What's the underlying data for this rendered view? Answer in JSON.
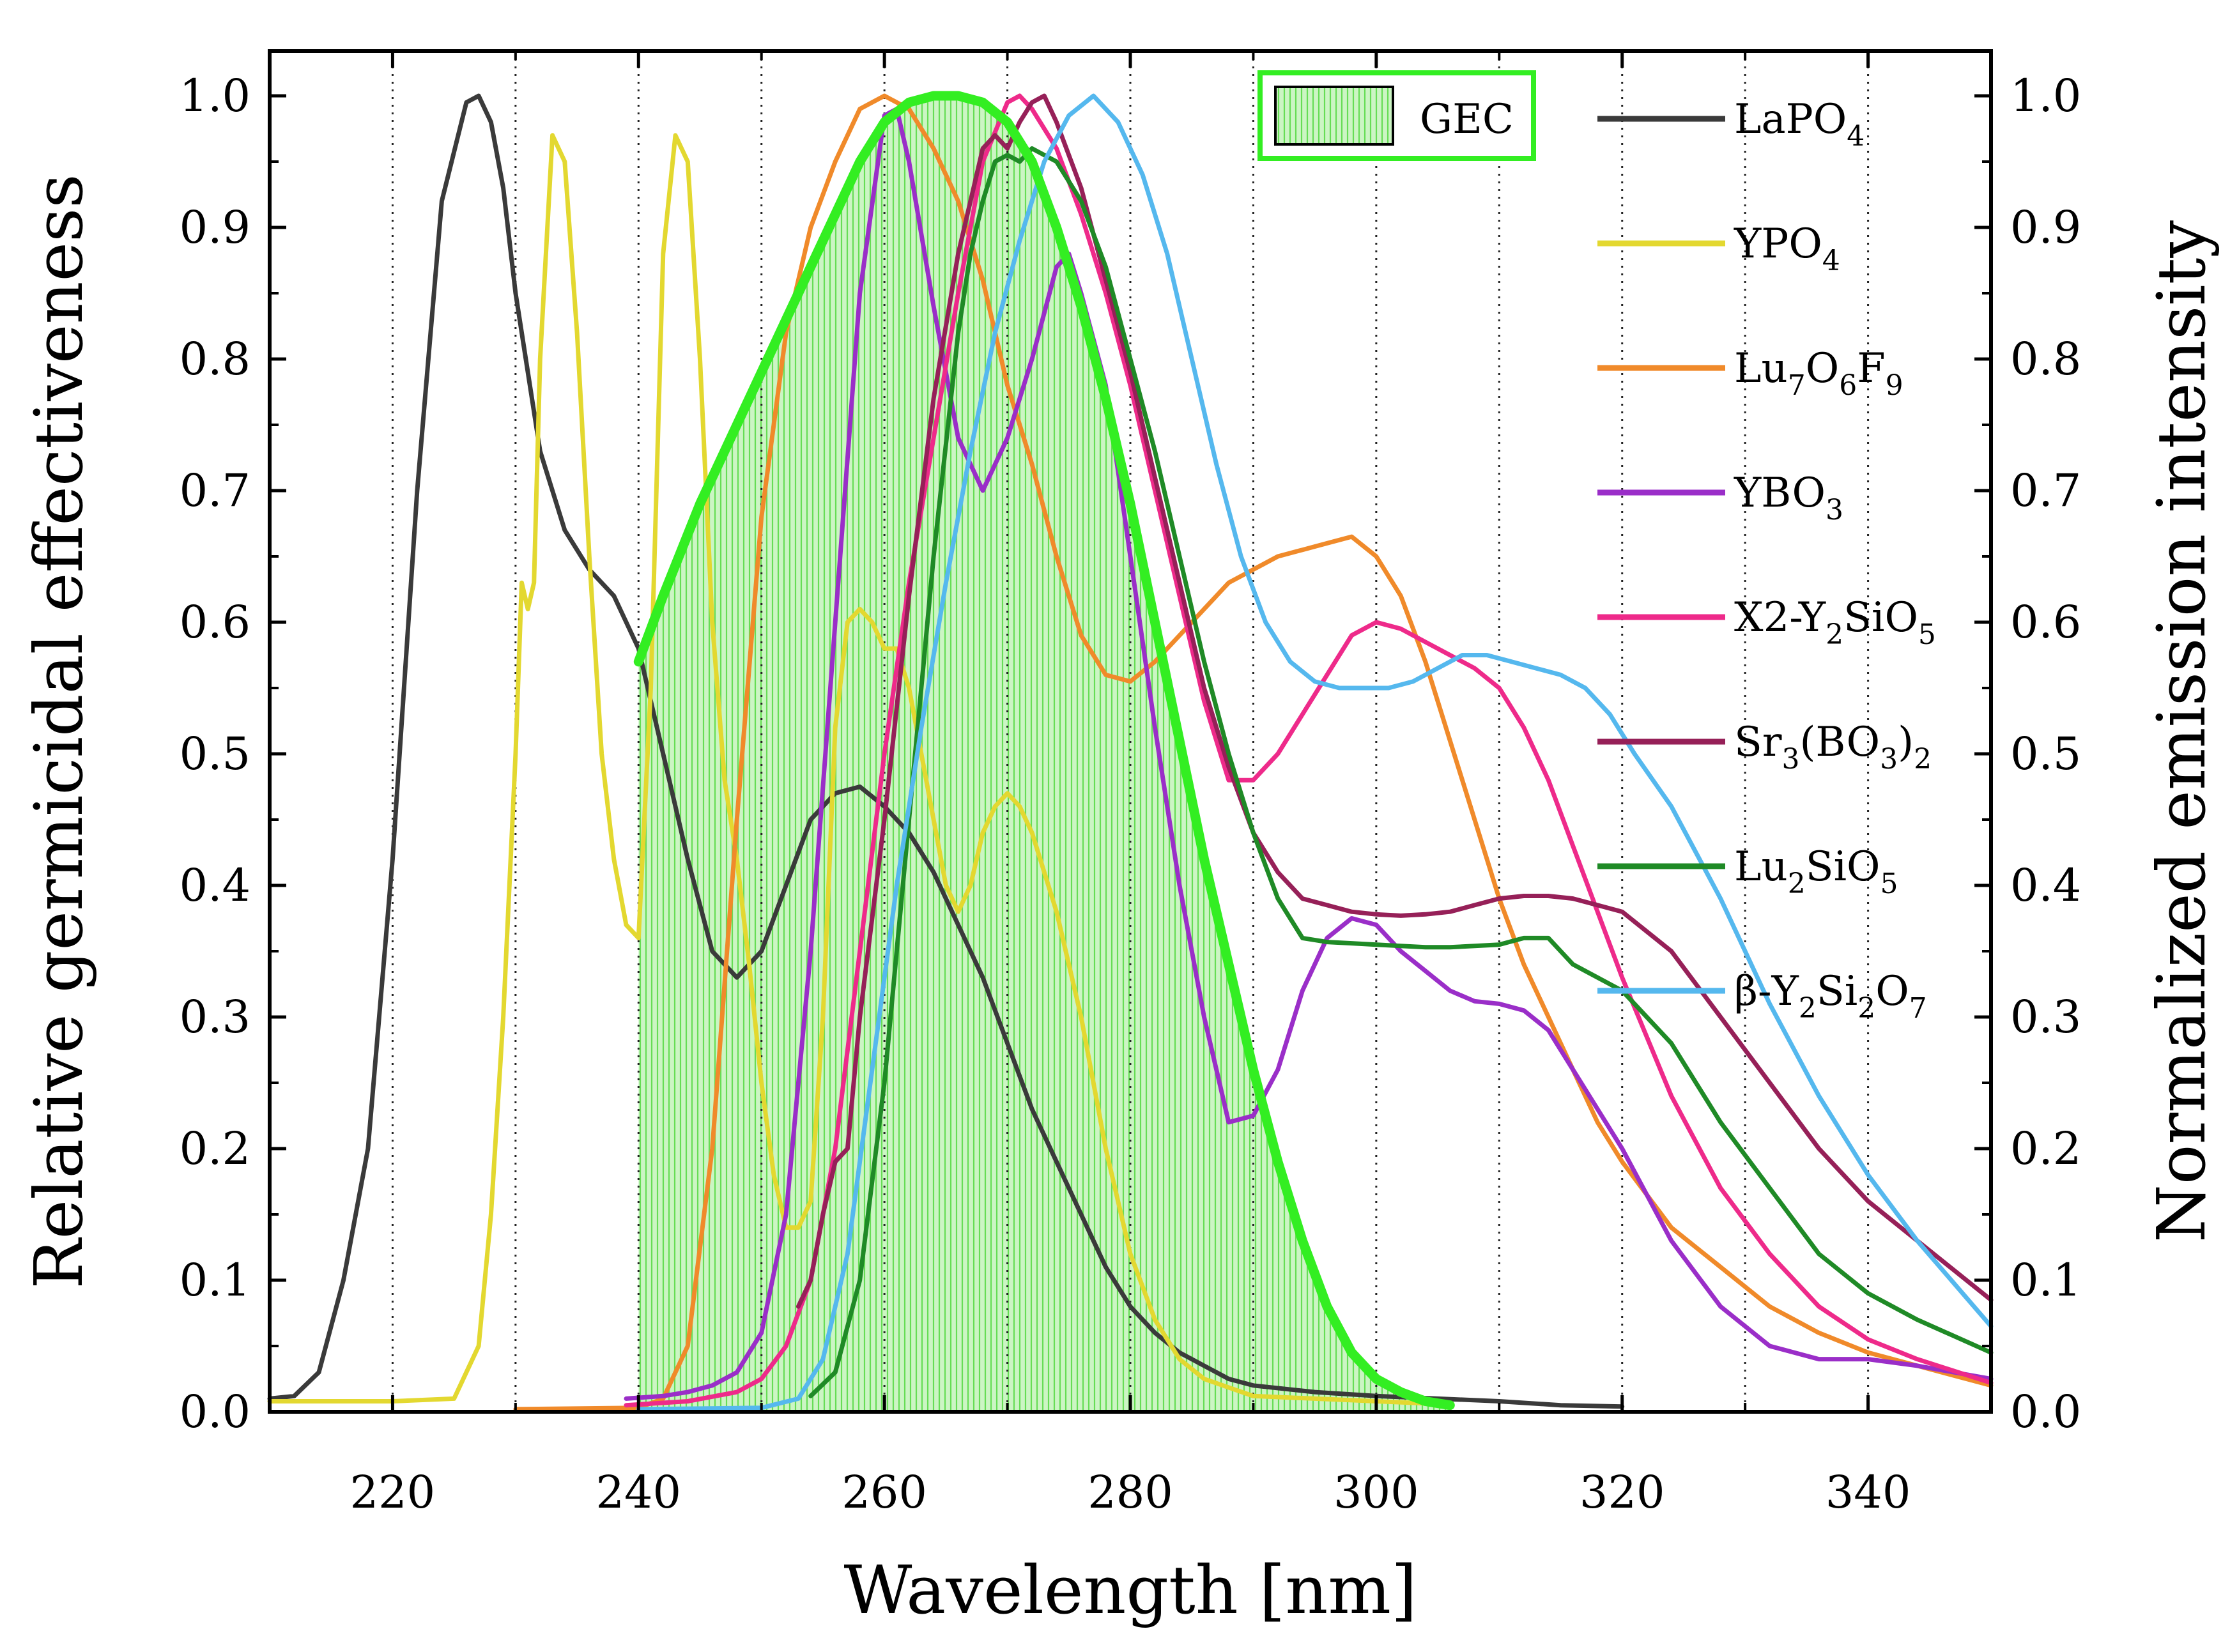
{
  "chart_data": {
    "type": "line",
    "title": "",
    "xlabel": "Wavelength [nm]",
    "ylabel": "Relative germicidal effectiveness",
    "y2label": "Normalized emission intensity",
    "xlim": [
      210,
      350
    ],
    "ylim": [
      0,
      1.0
    ],
    "y2lim": [
      0,
      1.0
    ],
    "x_ticks": [
      220,
      240,
      260,
      280,
      300,
      320,
      340
    ],
    "x_tick_labels": [
      "220",
      "240",
      "260",
      "280",
      "300",
      "320",
      "340"
    ],
    "x_grid_lines": [
      220,
      230,
      240,
      250,
      260,
      270,
      280,
      290,
      300,
      310,
      320,
      330,
      340
    ],
    "y_ticks": [
      0.0,
      0.1,
      0.2,
      0.3,
      0.4,
      0.5,
      0.6,
      0.7,
      0.8,
      0.9,
      1.0
    ],
    "y_tick_labels": [
      "0.0",
      "0.1",
      "0.2",
      "0.3",
      "0.4",
      "0.5",
      "0.6",
      "0.7",
      "0.8",
      "0.9",
      "1.0"
    ],
    "y2_tick_labels": [
      "0.0",
      "0.1",
      "0.2",
      "0.3",
      "0.4",
      "0.5",
      "0.6",
      "0.7",
      "0.8",
      "0.9",
      "1.0"
    ],
    "grid": "vertical dotted",
    "legend_placement": "top-right",
    "gec": {
      "name": "GEC",
      "color": "#33ee22",
      "fill_color": "#ccf5c4",
      "x": [
        240,
        242,
        245,
        248,
        250,
        252,
        254,
        256,
        258,
        260,
        262,
        264,
        265,
        266,
        268,
        270,
        272,
        274,
        276,
        278,
        280,
        282,
        284,
        286,
        288,
        290,
        292,
        294,
        296,
        298,
        300,
        302,
        304,
        306
      ],
      "y": [
        0.57,
        0.62,
        0.69,
        0.75,
        0.79,
        0.83,
        0.87,
        0.91,
        0.95,
        0.98,
        0.995,
        1.0,
        1.0,
        1.0,
        0.995,
        0.98,
        0.95,
        0.9,
        0.84,
        0.77,
        0.69,
        0.6,
        0.51,
        0.42,
        0.34,
        0.26,
        0.19,
        0.13,
        0.08,
        0.045,
        0.025,
        0.015,
        0.008,
        0.005
      ]
    },
    "series": [
      {
        "name": "LaPO",
        "sub": "4",
        "sub_rest": "",
        "color": "#3a3a3a",
        "x": [
          210,
          212,
          214,
          216,
          218,
          220,
          222,
          224,
          226,
          227,
          228,
          229,
          230,
          232,
          234,
          236,
          238,
          240,
          242,
          244,
          246,
          248,
          250,
          252,
          254,
          256,
          258,
          260,
          262,
          264,
          266,
          268,
          270,
          272,
          274,
          276,
          278,
          280,
          282,
          284,
          286,
          288,
          290,
          295,
          300,
          305,
          310,
          315,
          320
        ],
        "y": [
          0.01,
          0.012,
          0.03,
          0.1,
          0.2,
          0.42,
          0.7,
          0.92,
          0.995,
          1.0,
          0.98,
          0.93,
          0.85,
          0.73,
          0.67,
          0.64,
          0.62,
          0.58,
          0.5,
          0.42,
          0.35,
          0.33,
          0.35,
          0.4,
          0.45,
          0.47,
          0.475,
          0.46,
          0.44,
          0.41,
          0.37,
          0.33,
          0.28,
          0.23,
          0.19,
          0.15,
          0.11,
          0.08,
          0.06,
          0.045,
          0.035,
          0.025,
          0.02,
          0.015,
          0.012,
          0.01,
          0.008,
          0.005,
          0.004
        ]
      },
      {
        "name": "YPO",
        "sub": "4",
        "sub_rest": "",
        "color": "#e3d830",
        "x": [
          210,
          220,
          225,
          227,
          228,
          229,
          230,
          230.5,
          231,
          231.5,
          232,
          233,
          234,
          235,
          236,
          237,
          238,
          239,
          240,
          241,
          242,
          243,
          244,
          245,
          246,
          247,
          248,
          249,
          250,
          251,
          252,
          253,
          254,
          255,
          256,
          257,
          258,
          259,
          260,
          261,
          262,
          263,
          264,
          265,
          266,
          267,
          268,
          269,
          270,
          271,
          272,
          274,
          276,
          278,
          280,
          282,
          284,
          286,
          290,
          300,
          305
        ],
        "y": [
          0.008,
          0.008,
          0.01,
          0.05,
          0.15,
          0.3,
          0.5,
          0.63,
          0.61,
          0.63,
          0.8,
          0.97,
          0.95,
          0.82,
          0.65,
          0.5,
          0.42,
          0.37,
          0.36,
          0.55,
          0.88,
          0.97,
          0.95,
          0.8,
          0.6,
          0.48,
          0.42,
          0.34,
          0.25,
          0.18,
          0.14,
          0.14,
          0.16,
          0.3,
          0.52,
          0.6,
          0.61,
          0.6,
          0.58,
          0.58,
          0.55,
          0.5,
          0.45,
          0.4,
          0.38,
          0.4,
          0.44,
          0.46,
          0.47,
          0.46,
          0.44,
          0.38,
          0.3,
          0.2,
          0.12,
          0.07,
          0.04,
          0.025,
          0.012,
          0.008,
          0.006
        ]
      },
      {
        "name": "Lu",
        "sub": "7",
        "sub_rest": "O|6|F|9",
        "color": "#f08a2a",
        "x": [
          230,
          240,
          242,
          244,
          246,
          248,
          250,
          252,
          254,
          256,
          258,
          260,
          262,
          264,
          266,
          268,
          270,
          272,
          274,
          276,
          278,
          280,
          282,
          284,
          286,
          288,
          290,
          292,
          294,
          296,
          298,
          300,
          302,
          304,
          306,
          308,
          310,
          312,
          314,
          316,
          318,
          320,
          324,
          328,
          332,
          336,
          340,
          344,
          350
        ],
        "y": [
          0.002,
          0.003,
          0.01,
          0.05,
          0.2,
          0.45,
          0.68,
          0.82,
          0.9,
          0.95,
          0.99,
          1.0,
          0.99,
          0.96,
          0.92,
          0.86,
          0.78,
          0.72,
          0.65,
          0.59,
          0.56,
          0.555,
          0.57,
          0.59,
          0.61,
          0.63,
          0.64,
          0.65,
          0.655,
          0.66,
          0.665,
          0.65,
          0.62,
          0.57,
          0.51,
          0.45,
          0.39,
          0.34,
          0.3,
          0.26,
          0.22,
          0.19,
          0.14,
          0.11,
          0.08,
          0.06,
          0.045,
          0.035,
          0.02
        ]
      },
      {
        "name": "YBO",
        "sub": "3",
        "sub_rest": "",
        "color": "#9a2ec8",
        "x": [
          239,
          242,
          244,
          246,
          248,
          250,
          252,
          254,
          256,
          258,
          260,
          261,
          262,
          264,
          266,
          268,
          270,
          272,
          274,
          275,
          276,
          278,
          280,
          282,
          284,
          286,
          288,
          290,
          292,
          294,
          296,
          298,
          300,
          302,
          304,
          306,
          308,
          310,
          312,
          314,
          316,
          318,
          320,
          324,
          328,
          332,
          336,
          340,
          344,
          350
        ],
        "y": [
          0.01,
          0.012,
          0.015,
          0.02,
          0.03,
          0.06,
          0.15,
          0.35,
          0.6,
          0.85,
          0.985,
          0.99,
          0.95,
          0.84,
          0.74,
          0.7,
          0.74,
          0.8,
          0.87,
          0.88,
          0.85,
          0.78,
          0.65,
          0.52,
          0.4,
          0.3,
          0.22,
          0.225,
          0.26,
          0.32,
          0.36,
          0.375,
          0.37,
          0.35,
          0.335,
          0.32,
          0.312,
          0.31,
          0.305,
          0.29,
          0.26,
          0.23,
          0.2,
          0.13,
          0.08,
          0.05,
          0.04,
          0.04,
          0.035,
          0.025
        ]
      },
      {
        "name": "X2-Y",
        "sub": "2",
        "sub_rest": "SiO|5",
        "color": "#ee2a8a",
        "x": [
          239,
          244,
          248,
          250,
          252,
          254,
          256,
          258,
          260,
          262,
          264,
          266,
          268,
          270,
          271,
          272,
          274,
          276,
          278,
          280,
          282,
          284,
          286,
          288,
          290,
          292,
          294,
          296,
          298,
          300,
          302,
          304,
          306,
          308,
          310,
          312,
          314,
          316,
          318,
          320,
          324,
          328,
          332,
          336,
          340,
          344,
          350
        ],
        "y": [
          0.005,
          0.008,
          0.015,
          0.025,
          0.05,
          0.1,
          0.2,
          0.35,
          0.5,
          0.63,
          0.74,
          0.85,
          0.95,
          0.995,
          1.0,
          0.99,
          0.96,
          0.91,
          0.85,
          0.78,
          0.7,
          0.62,
          0.54,
          0.48,
          0.48,
          0.5,
          0.53,
          0.56,
          0.59,
          0.6,
          0.595,
          0.585,
          0.575,
          0.565,
          0.55,
          0.52,
          0.48,
          0.43,
          0.38,
          0.33,
          0.24,
          0.17,
          0.12,
          0.08,
          0.055,
          0.04,
          0.022
        ]
      },
      {
        "name": "Sr",
        "sub": "3",
        "sub_rest": "(BO|3|)|2",
        "color": "#962058",
        "x": [
          253,
          254,
          255,
          256,
          257,
          258,
          260,
          262,
          264,
          266,
          268,
          269,
          270,
          271,
          272,
          273,
          274,
          276,
          278,
          280,
          282,
          284,
          286,
          288,
          290,
          292,
          294,
          296,
          298,
          300,
          302,
          304,
          306,
          308,
          310,
          312,
          314,
          316,
          318,
          320,
          324,
          328,
          332,
          336,
          340,
          344,
          350
        ],
        "y": [
          0.08,
          0.1,
          0.15,
          0.19,
          0.2,
          0.3,
          0.45,
          0.62,
          0.77,
          0.88,
          0.96,
          0.97,
          0.96,
          0.98,
          0.995,
          1.0,
          0.98,
          0.93,
          0.86,
          0.79,
          0.71,
          0.63,
          0.55,
          0.49,
          0.44,
          0.41,
          0.39,
          0.385,
          0.38,
          0.378,
          0.377,
          0.378,
          0.38,
          0.385,
          0.39,
          0.392,
          0.392,
          0.39,
          0.385,
          0.38,
          0.35,
          0.3,
          0.25,
          0.2,
          0.16,
          0.13,
          0.085
        ]
      },
      {
        "name": "Lu",
        "sub": "2",
        "sub_rest": "SiO|5",
        "color": "#1f8a26",
        "x": [
          254,
          256,
          258,
          260,
          262,
          264,
          266,
          267,
          268,
          269,
          270,
          271,
          272,
          274,
          276,
          278,
          280,
          282,
          284,
          286,
          288,
          290,
          292,
          294,
          296,
          298,
          300,
          302,
          304,
          306,
          308,
          310,
          312,
          314,
          316,
          318,
          320,
          324,
          328,
          332,
          336,
          340,
          344,
          350
        ],
        "y": [
          0.012,
          0.03,
          0.1,
          0.25,
          0.45,
          0.65,
          0.82,
          0.88,
          0.92,
          0.95,
          0.955,
          0.95,
          0.96,
          0.95,
          0.92,
          0.87,
          0.8,
          0.73,
          0.65,
          0.57,
          0.5,
          0.44,
          0.39,
          0.36,
          0.357,
          0.356,
          0.355,
          0.354,
          0.353,
          0.353,
          0.354,
          0.355,
          0.36,
          0.36,
          0.34,
          0.33,
          0.32,
          0.28,
          0.22,
          0.17,
          0.12,
          0.09,
          0.07,
          0.045
        ]
      },
      {
        "name": "β-Y",
        "sub": "2",
        "sub_rest": "Si|2|O|7",
        "color": "#55b8ee",
        "x": [
          240,
          250,
          253,
          255,
          257,
          259,
          261,
          263,
          265,
          267,
          269,
          271,
          273,
          275,
          277,
          279,
          281,
          283,
          285,
          287,
          289,
          291,
          293,
          295,
          297,
          299,
          301,
          303,
          305,
          307,
          309,
          311,
          313,
          315,
          317,
          319,
          321,
          324,
          328,
          332,
          336,
          340,
          344,
          350
        ],
        "y": [
          0.002,
          0.003,
          0.01,
          0.04,
          0.12,
          0.26,
          0.4,
          0.52,
          0.63,
          0.73,
          0.82,
          0.89,
          0.95,
          0.985,
          1.0,
          0.98,
          0.94,
          0.88,
          0.8,
          0.72,
          0.65,
          0.6,
          0.57,
          0.555,
          0.55,
          0.55,
          0.55,
          0.555,
          0.565,
          0.575,
          0.575,
          0.57,
          0.565,
          0.56,
          0.55,
          0.53,
          0.5,
          0.46,
          0.39,
          0.31,
          0.24,
          0.18,
          0.13,
          0.065
        ]
      }
    ]
  }
}
